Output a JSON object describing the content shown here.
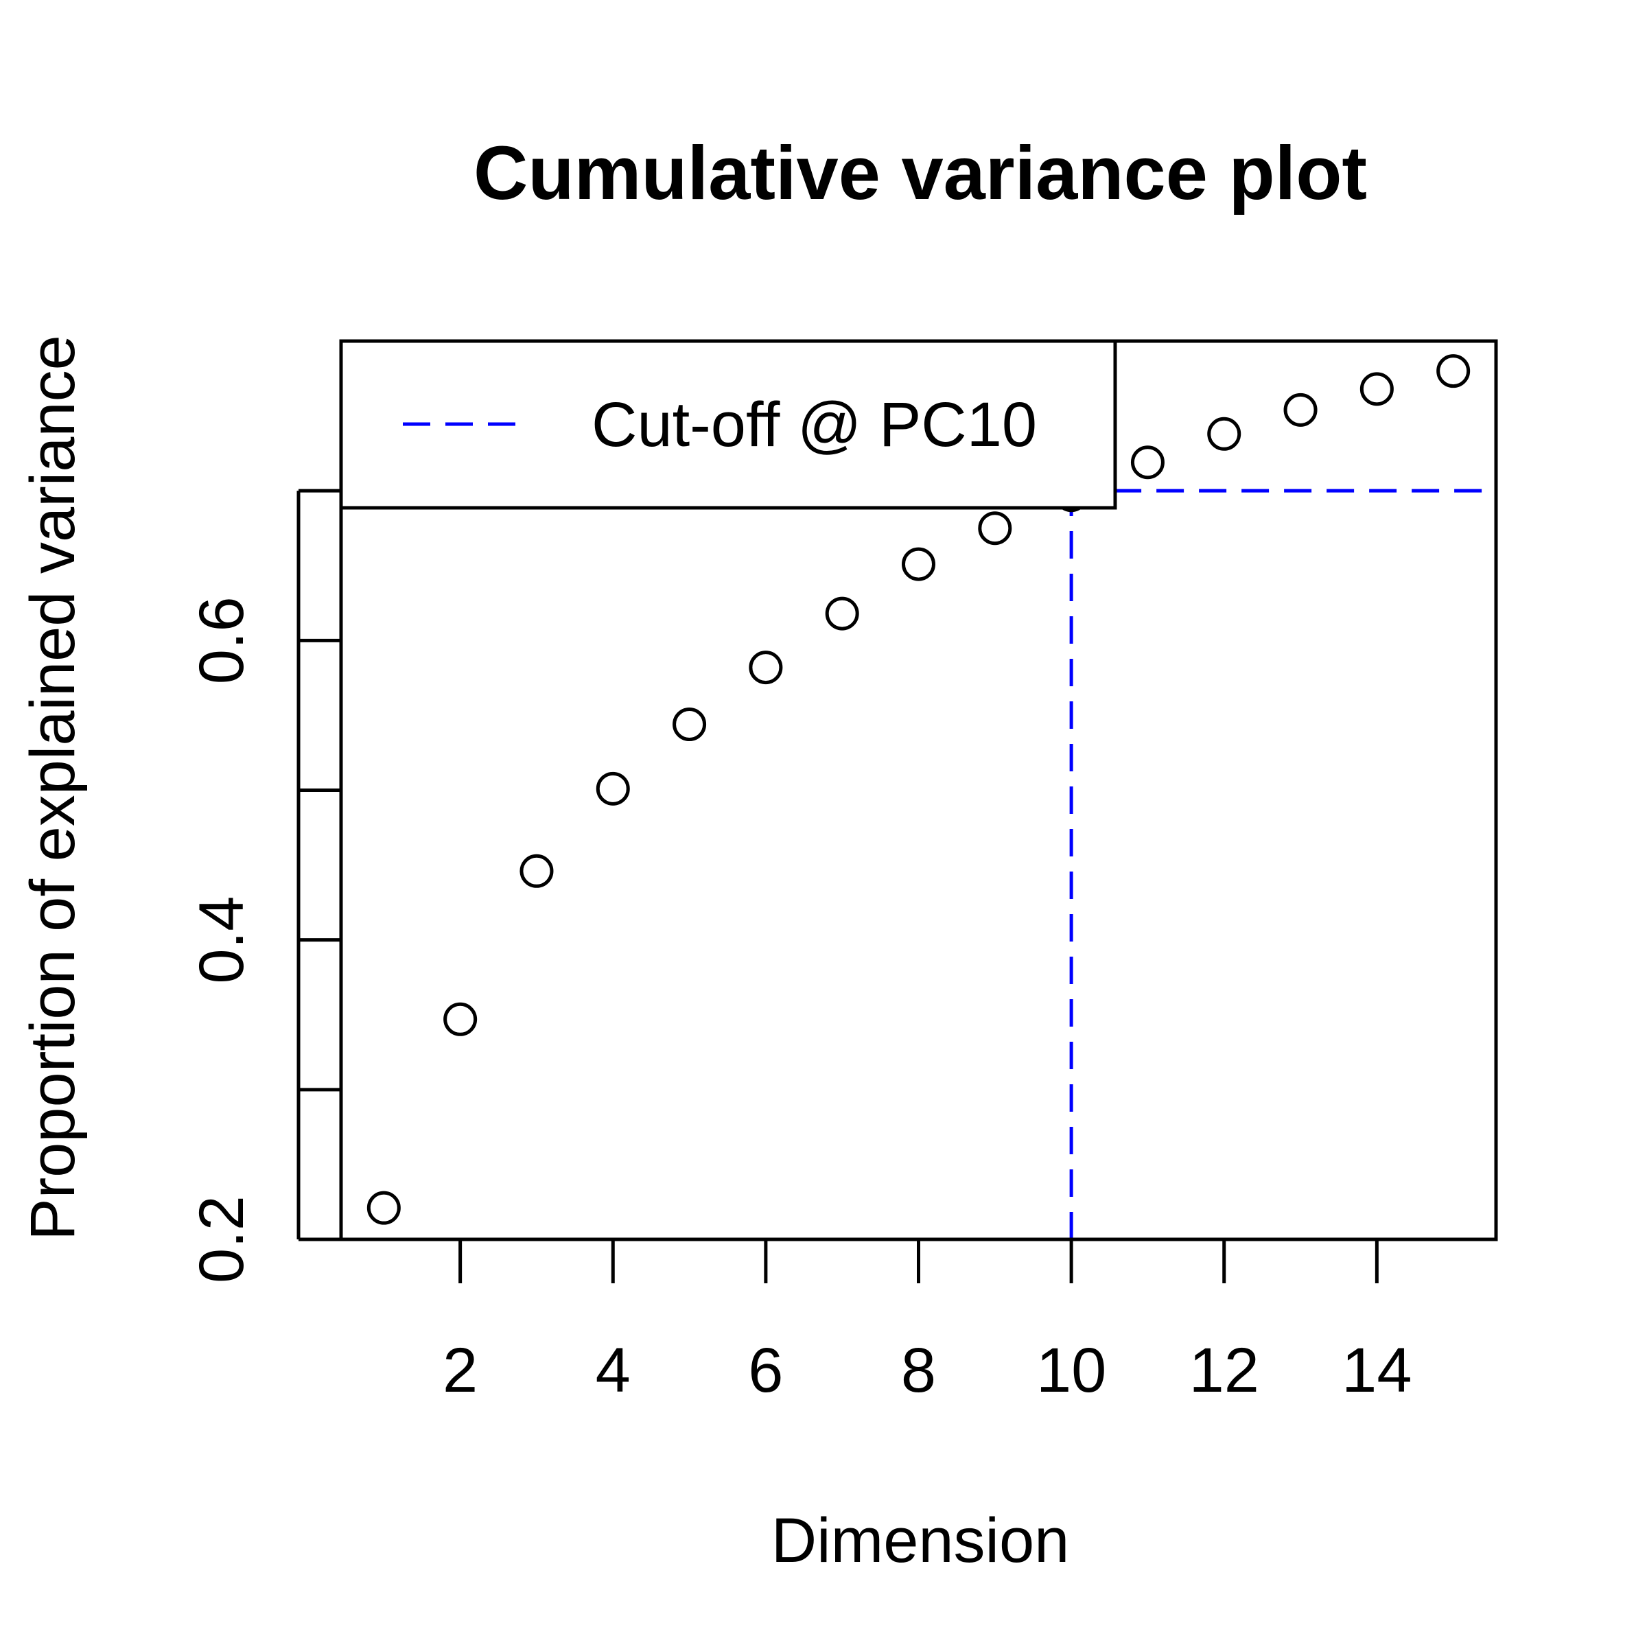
{
  "chart_data": {
    "type": "scatter",
    "title": "Cumulative variance plot",
    "xlabel": "Dimension",
    "ylabel": "Proportion of explained variance",
    "x": [
      1,
      2,
      3,
      4,
      5,
      6,
      7,
      8,
      9,
      10,
      11,
      12,
      13,
      14,
      15
    ],
    "y": [
      0.221,
      0.347,
      0.446,
      0.501,
      0.544,
      0.582,
      0.618,
      0.651,
      0.675,
      0.697,
      0.719,
      0.738,
      0.754,
      0.768,
      0.78
    ],
    "xlim": [
      0.44,
      15.56
    ],
    "ylim": [
      0.2,
      0.8
    ],
    "xticks": [
      2,
      4,
      6,
      8,
      10,
      12,
      14
    ],
    "xtick_labels": [
      "2",
      "4",
      "6",
      "8",
      "10",
      "12",
      "14"
    ],
    "yticks": [
      0.2,
      0.3,
      0.4,
      0.5,
      0.6,
      0.7
    ],
    "ytick_labels": [
      "0.2",
      "",
      "0.4",
      "",
      "0.6",
      ""
    ],
    "marker": "open-circle",
    "grid": false,
    "cutoff": {
      "x": 10,
      "y": 0.7,
      "color": "#0000ff",
      "style": "dashed"
    },
    "legend": {
      "position": "top-left",
      "entries": [
        {
          "label": "Cut-off @ PC10",
          "color": "#0000ff",
          "style": "dashed"
        }
      ]
    }
  }
}
